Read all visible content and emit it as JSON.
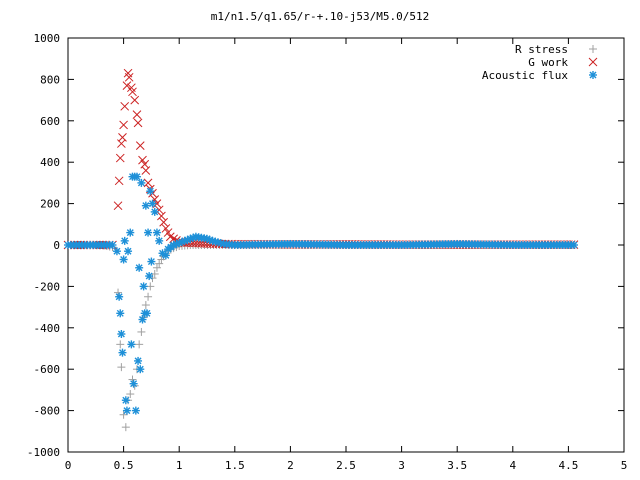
{
  "chart_data": {
    "type": "scatter",
    "title": "m1/n1.5/q1.65/r-+.10-j53/M5.0/512",
    "xlabel": "",
    "ylabel": "",
    "xlim": [
      0,
      5
    ],
    "ylim": [
      -1000,
      1000
    ],
    "x_ticks": [
      "0",
      "0.5",
      "1",
      "1.5",
      "2",
      "2.5",
      "3",
      "3.5",
      "4",
      "4.5",
      "5"
    ],
    "y_ticks": [
      "-1000",
      "-800",
      "-600",
      "-400",
      "-200",
      "0",
      "200",
      "400",
      "600",
      "800",
      "1000"
    ],
    "grid": false,
    "legend_position": "top-right",
    "series": [
      {
        "name": "R stress",
        "marker": "+",
        "color": "#a0a0a0",
        "points": [
          [
            0.0,
            0
          ],
          [
            0.1,
            0
          ],
          [
            0.2,
            0
          ],
          [
            0.3,
            0
          ],
          [
            0.4,
            -10
          ],
          [
            0.45,
            -230
          ],
          [
            0.47,
            -480
          ],
          [
            0.48,
            -590
          ],
          [
            0.5,
            -820
          ],
          [
            0.52,
            -880
          ],
          [
            0.54,
            -750
          ],
          [
            0.56,
            -720
          ],
          [
            0.58,
            -650
          ],
          [
            0.6,
            -680
          ],
          [
            0.62,
            -600
          ],
          [
            0.64,
            -480
          ],
          [
            0.66,
            -420
          ],
          [
            0.68,
            -350
          ],
          [
            0.7,
            -290
          ],
          [
            0.72,
            -250
          ],
          [
            0.74,
            -200
          ],
          [
            0.76,
            -160
          ],
          [
            0.78,
            -140
          ],
          [
            0.8,
            -110
          ],
          [
            0.82,
            -90
          ],
          [
            0.84,
            -70
          ],
          [
            0.86,
            -55
          ],
          [
            0.88,
            -40
          ],
          [
            0.9,
            -30
          ],
          [
            0.95,
            -15
          ],
          [
            1.0,
            -5
          ],
          [
            1.1,
            0
          ],
          [
            1.2,
            0
          ],
          [
            1.5,
            0
          ],
          [
            2.0,
            0
          ],
          [
            2.5,
            0
          ],
          [
            3.0,
            0
          ],
          [
            3.5,
            0
          ],
          [
            4.0,
            0
          ],
          [
            4.5,
            0
          ],
          [
            4.55,
            0
          ]
        ]
      },
      {
        "name": "G work",
        "marker": "x",
        "color": "#cc2222",
        "points": [
          [
            0.0,
            0
          ],
          [
            0.2,
            0
          ],
          [
            0.4,
            0
          ],
          [
            0.45,
            190
          ],
          [
            0.46,
            310
          ],
          [
            0.47,
            420
          ],
          [
            0.48,
            490
          ],
          [
            0.49,
            520
          ],
          [
            0.5,
            580
          ],
          [
            0.51,
            670
          ],
          [
            0.53,
            770
          ],
          [
            0.54,
            830
          ],
          [
            0.55,
            810
          ],
          [
            0.57,
            760
          ],
          [
            0.58,
            740
          ],
          [
            0.6,
            700
          ],
          [
            0.62,
            630
          ],
          [
            0.63,
            590
          ],
          [
            0.65,
            480
          ],
          [
            0.67,
            410
          ],
          [
            0.69,
            390
          ],
          [
            0.7,
            360
          ],
          [
            0.72,
            300
          ],
          [
            0.74,
            270
          ],
          [
            0.76,
            250
          ],
          [
            0.78,
            220
          ],
          [
            0.8,
            200
          ],
          [
            0.82,
            170
          ],
          [
            0.84,
            140
          ],
          [
            0.86,
            110
          ],
          [
            0.88,
            80
          ],
          [
            0.9,
            60
          ],
          [
            0.92,
            40
          ],
          [
            0.95,
            30
          ],
          [
            1.0,
            15
          ],
          [
            1.05,
            10
          ],
          [
            1.1,
            12
          ],
          [
            1.15,
            10
          ],
          [
            1.2,
            8
          ],
          [
            1.3,
            6
          ],
          [
            1.5,
            4
          ],
          [
            2.0,
            3
          ],
          [
            2.5,
            3
          ],
          [
            3.0,
            2
          ],
          [
            3.5,
            2
          ],
          [
            4.0,
            2
          ],
          [
            4.5,
            2
          ],
          [
            4.55,
            2
          ]
        ]
      },
      {
        "name": "Acoustic flux",
        "marker": "*",
        "color": "#1e90d8",
        "points": [
          [
            0.0,
            0
          ],
          [
            0.1,
            0
          ],
          [
            0.2,
            0
          ],
          [
            0.3,
            0
          ],
          [
            0.4,
            0
          ],
          [
            0.44,
            -30
          ],
          [
            0.46,
            -250
          ],
          [
            0.47,
            -330
          ],
          [
            0.48,
            -430
          ],
          [
            0.49,
            -520
          ],
          [
            0.5,
            -70
          ],
          [
            0.51,
            20
          ],
          [
            0.52,
            -750
          ],
          [
            0.53,
            -800
          ],
          [
            0.54,
            -30
          ],
          [
            0.56,
            60
          ],
          [
            0.57,
            -480
          ],
          [
            0.58,
            330
          ],
          [
            0.59,
            -670
          ],
          [
            0.6,
            330
          ],
          [
            0.61,
            -800
          ],
          [
            0.62,
            330
          ],
          [
            0.63,
            -560
          ],
          [
            0.64,
            -110
          ],
          [
            0.65,
            -600
          ],
          [
            0.66,
            300
          ],
          [
            0.67,
            -360
          ],
          [
            0.68,
            -200
          ],
          [
            0.69,
            -330
          ],
          [
            0.7,
            190
          ],
          [
            0.71,
            -330
          ],
          [
            0.72,
            60
          ],
          [
            0.73,
            -150
          ],
          [
            0.74,
            260
          ],
          [
            0.75,
            -80
          ],
          [
            0.76,
            200
          ],
          [
            0.78,
            160
          ],
          [
            0.8,
            60
          ],
          [
            0.82,
            20
          ],
          [
            0.85,
            -40
          ],
          [
            0.88,
            -50
          ],
          [
            0.9,
            -20
          ],
          [
            0.95,
            0
          ],
          [
            1.0,
            10
          ],
          [
            1.05,
            20
          ],
          [
            1.1,
            30
          ],
          [
            1.15,
            40
          ],
          [
            1.2,
            35
          ],
          [
            1.25,
            30
          ],
          [
            1.3,
            20
          ],
          [
            1.4,
            5
          ],
          [
            1.5,
            0
          ],
          [
            2.0,
            5
          ],
          [
            2.5,
            0
          ],
          [
            3.0,
            0
          ],
          [
            3.5,
            5
          ],
          [
            4.0,
            0
          ],
          [
            4.5,
            0
          ],
          [
            4.55,
            0
          ]
        ]
      }
    ]
  }
}
